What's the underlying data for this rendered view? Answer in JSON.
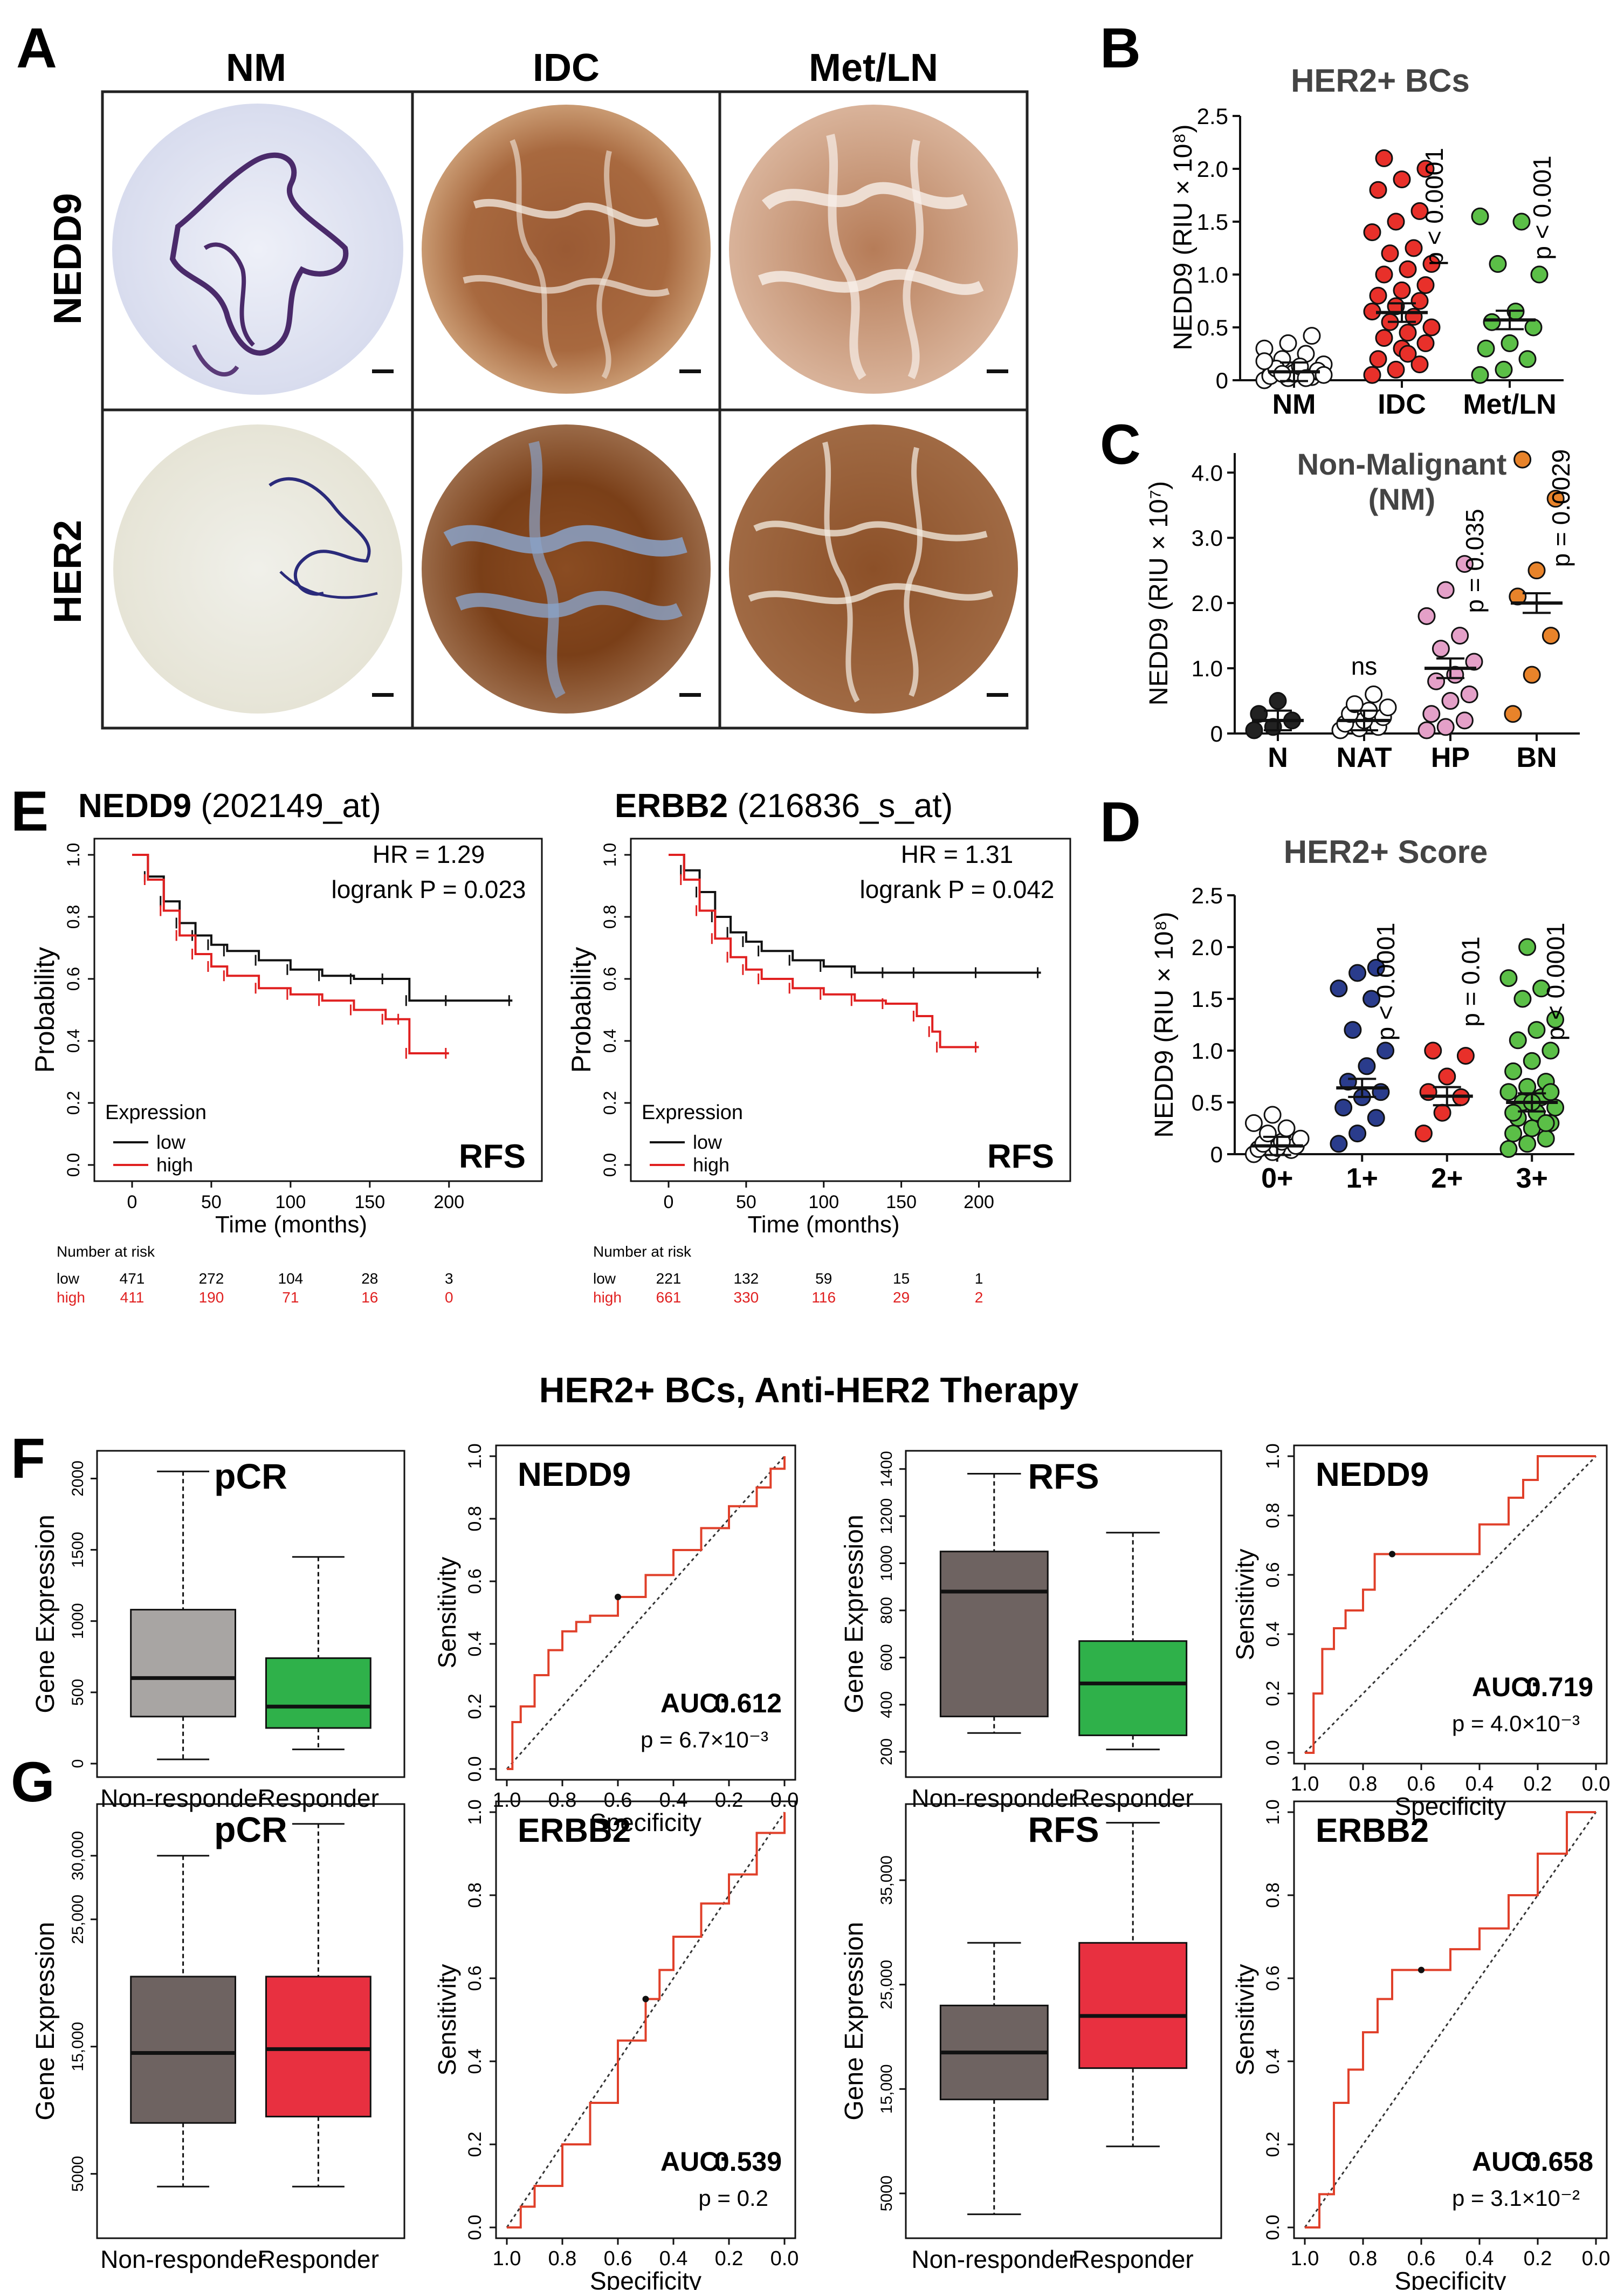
{
  "panelA": {
    "letter": "A",
    "col_labels": [
      "NM",
      "IDC",
      "Met/LN"
    ],
    "row_labels": [
      "NEDD9",
      "HER2"
    ]
  },
  "panelB": {
    "letter": "B",
    "title": "HER2+ BCs",
    "ylabel": "NEDD9 (RIU × 10⁸)",
    "groups": [
      "NM",
      "IDC",
      "Met/LN"
    ],
    "pvalues": [
      "",
      "p < 0.0001",
      "p < 0.001"
    ],
    "colors": [
      "#ffffff",
      "#e8302a",
      "#5bbf47"
    ]
  },
  "panelC": {
    "letter": "C",
    "title_line1": "Non-Malignant",
    "title_line2": "(NM)",
    "ylabel": "NEDD9 (RIU × 10⁷)",
    "groups": [
      "N",
      "NAT",
      "HP",
      "BN"
    ],
    "ns_label": "ns",
    "pvalues": [
      "",
      "",
      "p = 0.035",
      "p = 0.0029"
    ],
    "colors": [
      "#222222",
      "#ffffff",
      "#e4a0c8",
      "#e8832a"
    ]
  },
  "panelD": {
    "letter": "D",
    "title": "HER2+ Score",
    "ylabel": "NEDD9 (RIU × 10⁸)",
    "groups": [
      "0+",
      "1+",
      "2+",
      "3+"
    ],
    "pvalues": [
      "",
      "p < 0.0001",
      "p = 0.01",
      "p < 0.0001"
    ],
    "colors": [
      "#ffffff",
      "#2a3c8c",
      "#e8302a",
      "#5bbf47"
    ]
  },
  "panelE": {
    "letter": "E",
    "plots": [
      {
        "gene": "NEDD9",
        "probe": "(202149_at)",
        "hr": "HR = 1.29",
        "logrank": "logrank P = 0.023",
        "risk_low": [
          "471",
          "272",
          "104",
          "28",
          "3"
        ],
        "risk_high": [
          "411",
          "190",
          "71",
          "16",
          "0"
        ]
      },
      {
        "gene": "ERBB2",
        "probe": "(216836_s_at)",
        "hr": "HR = 1.31",
        "logrank": "logrank P = 0.042",
        "risk_low": [
          "221",
          "132",
          "59",
          "15",
          "1"
        ],
        "risk_high": [
          "661",
          "330",
          "116",
          "29",
          "2"
        ]
      }
    ],
    "ylabel": "Probability",
    "xlabel": "Time (months)",
    "legend_title": "Expression",
    "legend_low": "low",
    "legend_high": "high",
    "tag": "RFS",
    "risk_header": "Number at risk",
    "risk_low_label": "low",
    "risk_high_label": "high",
    "x_ticks": [
      "0",
      "50",
      "100",
      "150",
      "200"
    ],
    "y_ticks": [
      "0.0",
      "0.2",
      "0.4",
      "0.6",
      "0.8",
      "1.0"
    ]
  },
  "section_title": "HER2+ BCs, Anti-HER2 Therapy",
  "panelF": {
    "letter": "F"
  },
  "panelG": {
    "letter": "G"
  },
  "boxplots": {
    "ylabel": "Gene Expression",
    "xcat": [
      "Non-responder",
      "Responder"
    ],
    "F_pcr": {
      "title": "pCR",
      "ticks": [
        "0",
        "500",
        "1000",
        "1500",
        "2000"
      ]
    },
    "F_rfs": {
      "title": "RFS",
      "ticks": [
        "200",
        "400",
        "600",
        "800",
        "1000",
        "1200",
        "1400"
      ]
    },
    "G_pcr": {
      "title": "pCR",
      "ticks": [
        "5000",
        "15,000",
        "25,000",
        "30,000"
      ]
    },
    "G_rfs": {
      "title": "RFS",
      "ticks": [
        "5000",
        "15,000",
        "25,000",
        "35,000"
      ]
    }
  },
  "rocs": {
    "xlabel": "Specificity",
    "ylabel": "Sensitivity",
    "x_ticks": [
      "1.0",
      "0.8",
      "0.6",
      "0.4",
      "0.2",
      "0.0"
    ],
    "y_ticks": [
      "0.0",
      "0.2",
      "0.4",
      "0.6",
      "0.8",
      "1.0"
    ],
    "auc_label": "AUC:",
    "F1": {
      "gene": "NEDD9",
      "auc": "0.612",
      "p": "p = 6.7×10⁻³"
    },
    "F2": {
      "gene": "NEDD9",
      "auc": "0.719",
      "p": "p = 4.0×10⁻³"
    },
    "G1": {
      "gene": "ERBB2",
      "auc": "0.539",
      "p": "p = 0.2"
    },
    "G2": {
      "gene": "ERBB2",
      "auc": "0.658",
      "p": "p = 3.1×10⁻²"
    }
  },
  "chart_data": [
    {
      "type": "scatter",
      "panel": "B",
      "title": "HER2+ BCs",
      "ylabel": "NEDD9 (RIU × 10⁸)",
      "categories": [
        "NM",
        "IDC",
        "Met/LN"
      ],
      "means": [
        0.08,
        0.64,
        0.57
      ],
      "ylim": [
        0,
        2.5
      ],
      "points": [
        [
          0.0,
          0.02,
          0.03,
          0.05,
          0.06,
          0.08,
          0.1,
          0.12,
          0.15,
          0.2,
          0.25,
          0.3,
          0.35,
          0.42,
          0.04,
          0.07,
          0.09,
          0.11,
          0.13,
          0.05,
          0.06,
          0.02,
          0.18
        ],
        [
          0.05,
          0.1,
          0.15,
          0.2,
          0.3,
          0.35,
          0.4,
          0.45,
          0.5,
          0.55,
          0.6,
          0.65,
          0.7,
          0.75,
          0.8,
          0.85,
          0.9,
          1.0,
          1.05,
          1.1,
          1.2,
          1.25,
          1.4,
          1.5,
          1.6,
          1.8,
          1.9,
          2.0,
          2.1,
          0.25
        ],
        [
          0.05,
          0.1,
          0.2,
          0.3,
          0.35,
          0.5,
          0.55,
          0.65,
          1.0,
          1.1,
          1.5,
          1.55
        ]
      ]
    },
    {
      "type": "scatter",
      "panel": "C",
      "title": "Non-Malignant (NM)",
      "ylabel": "NEDD9 (RIU × 10⁷)",
      "categories": [
        "N",
        "NAT",
        "HP",
        "BN"
      ],
      "means": [
        0.2,
        0.2,
        1.0,
        2.0
      ],
      "ylim": [
        0,
        4.3
      ],
      "points": [
        [
          0.05,
          0.1,
          0.2,
          0.3,
          0.5
        ],
        [
          0.05,
          0.08,
          0.1,
          0.15,
          0.2,
          0.25,
          0.3,
          0.35,
          0.4,
          0.45,
          0.6
        ],
        [
          0.05,
          0.1,
          0.2,
          0.3,
          0.5,
          0.6,
          0.8,
          0.9,
          1.1,
          1.3,
          1.5,
          1.8,
          2.2,
          2.6
        ],
        [
          0.3,
          0.9,
          1.5,
          2.1,
          2.5,
          3.6,
          4.2
        ]
      ]
    },
    {
      "type": "scatter",
      "panel": "D",
      "title": "HER2+ Score",
      "ylabel": "NEDD9 (RIU × 10⁸)",
      "categories": [
        "0+",
        "1+",
        "2+",
        "3+"
      ],
      "means": [
        0.08,
        0.64,
        0.56,
        0.5
      ],
      "ylim": [
        0,
        2.5
      ],
      "points": [
        [
          0.0,
          0.02,
          0.04,
          0.05,
          0.06,
          0.08,
          0.1,
          0.12,
          0.15,
          0.2,
          0.25,
          0.3,
          0.38
        ],
        [
          0.1,
          0.2,
          0.35,
          0.45,
          0.55,
          0.6,
          0.7,
          0.85,
          1.0,
          1.2,
          1.5,
          1.6,
          1.75,
          1.8
        ],
        [
          0.2,
          0.4,
          0.55,
          0.6,
          0.75,
          0.95,
          1.0
        ],
        [
          0.05,
          0.1,
          0.15,
          0.2,
          0.25,
          0.3,
          0.35,
          0.4,
          0.45,
          0.5,
          0.55,
          0.6,
          0.65,
          0.7,
          0.8,
          0.9,
          1.0,
          1.1,
          1.2,
          1.3,
          1.5,
          1.6,
          1.7,
          2.0,
          0.3,
          0.4,
          0.5,
          0.6
        ]
      ]
    },
    {
      "type": "line",
      "panel": "E1",
      "title": "NEDD9 (202149_at)",
      "xlabel": "Time (months)",
      "ylabel": "Probability",
      "xlim": [
        0,
        245
      ],
      "ylim": [
        0,
        1.0
      ],
      "series": [
        {
          "name": "low",
          "x": [
            0,
            10,
            20,
            30,
            40,
            50,
            60,
            80,
            100,
            120,
            140,
            160,
            175,
            200,
            240
          ],
          "y": [
            1.0,
            0.93,
            0.85,
            0.78,
            0.74,
            0.71,
            0.69,
            0.66,
            0.63,
            0.61,
            0.6,
            0.6,
            0.53,
            0.53,
            0.53
          ]
        },
        {
          "name": "high",
          "x": [
            0,
            10,
            20,
            30,
            40,
            50,
            60,
            80,
            100,
            120,
            140,
            160,
            170,
            175,
            200
          ],
          "y": [
            1.0,
            0.92,
            0.82,
            0.74,
            0.68,
            0.64,
            0.61,
            0.57,
            0.55,
            0.53,
            0.5,
            0.47,
            0.47,
            0.36,
            0.36
          ]
        }
      ]
    },
    {
      "type": "line",
      "panel": "E2",
      "title": "ERBB2 (216836_s_at)",
      "xlabel": "Time (months)",
      "ylabel": "Probability",
      "xlim": [
        0,
        245
      ],
      "ylim": [
        0,
        1.0
      ],
      "series": [
        {
          "name": "low",
          "x": [
            0,
            10,
            20,
            30,
            40,
            50,
            60,
            80,
            100,
            120,
            140,
            160,
            200,
            240
          ],
          "y": [
            1.0,
            0.95,
            0.88,
            0.8,
            0.75,
            0.72,
            0.69,
            0.66,
            0.64,
            0.62,
            0.62,
            0.62,
            0.62,
            0.62
          ]
        },
        {
          "name": "high",
          "x": [
            0,
            10,
            20,
            30,
            40,
            50,
            60,
            80,
            100,
            120,
            140,
            160,
            170,
            175,
            200
          ],
          "y": [
            1.0,
            0.92,
            0.82,
            0.73,
            0.67,
            0.63,
            0.6,
            0.57,
            0.55,
            0.53,
            0.52,
            0.48,
            0.43,
            0.38,
            0.38
          ]
        }
      ]
    },
    {
      "type": "box",
      "panel": "F-pCR",
      "categories": [
        "Non-responder",
        "Responder"
      ],
      "boxes": [
        {
          "min": 30,
          "q1": 330,
          "median": 600,
          "q3": 1080,
          "max": 2050
        },
        {
          "min": 100,
          "q1": 250,
          "median": 400,
          "q3": 740,
          "max": 1450
        }
      ],
      "ylim": [
        0,
        2100
      ]
    },
    {
      "type": "box",
      "panel": "F-RFS",
      "categories": [
        "Non-responder",
        "Responder"
      ],
      "boxes": [
        {
          "min": 280,
          "q1": 350,
          "median": 880,
          "q3": 1050,
          "max": 1380
        },
        {
          "min": 210,
          "q1": 270,
          "median": 490,
          "q3": 670,
          "max": 1130
        }
      ],
      "ylim": [
        150,
        1420
      ]
    },
    {
      "type": "box",
      "panel": "G-pCR",
      "categories": [
        "Non-responder",
        "Responder"
      ],
      "boxes": [
        {
          "min": 4000,
          "q1": 9000,
          "median": 14500,
          "q3": 20500,
          "max": 30000
        },
        {
          "min": 4000,
          "q1": 9500,
          "median": 14800,
          "q3": 20500,
          "max": 32500
        }
      ],
      "ylim": [
        1000,
        33000
      ]
    },
    {
      "type": "box",
      "panel": "G-RFS",
      "categories": [
        "Non-responder",
        "Responder"
      ],
      "boxes": [
        {
          "min": 3000,
          "q1": 14000,
          "median": 18500,
          "q3": 23000,
          "max": 29000
        },
        {
          "min": 9500,
          "q1": 17000,
          "median": 22000,
          "q3": 29000,
          "max": 40500
        }
      ],
      "ylim": [
        2000,
        41000
      ]
    },
    {
      "type": "line",
      "panel": "F-ROC-NEDD9-pCR",
      "auc": 0.612,
      "xlabel": "Specificity",
      "ylabel": "Sensitivity",
      "series": [
        {
          "name": "ROC",
          "x": [
            1.0,
            0.98,
            0.95,
            0.9,
            0.85,
            0.8,
            0.75,
            0.7,
            0.6,
            0.5,
            0.4,
            0.3,
            0.2,
            0.1,
            0.05,
            0.0
          ],
          "y": [
            0.0,
            0.15,
            0.2,
            0.3,
            0.38,
            0.44,
            0.47,
            0.49,
            0.55,
            0.62,
            0.7,
            0.77,
            0.84,
            0.9,
            0.96,
            1.0
          ]
        }
      ]
    },
    {
      "type": "line",
      "panel": "F-ROC-NEDD9-RFS",
      "auc": 0.719,
      "xlabel": "Specificity",
      "ylabel": "Sensitivity",
      "series": [
        {
          "name": "ROC",
          "x": [
            1.0,
            0.97,
            0.94,
            0.9,
            0.86,
            0.8,
            0.76,
            0.7,
            0.5,
            0.4,
            0.3,
            0.25,
            0.2,
            0.0
          ],
          "y": [
            0.0,
            0.2,
            0.35,
            0.42,
            0.48,
            0.55,
            0.67,
            0.67,
            0.67,
            0.77,
            0.86,
            0.92,
            1.0,
            1.0
          ]
        }
      ]
    },
    {
      "type": "line",
      "panel": "G-ROC-ERBB2-pCR",
      "auc": 0.539,
      "xlabel": "Specificity",
      "ylabel": "Sensitivity",
      "series": [
        {
          "name": "ROC",
          "x": [
            1.0,
            0.95,
            0.9,
            0.8,
            0.7,
            0.6,
            0.5,
            0.45,
            0.4,
            0.3,
            0.2,
            0.1,
            0.0
          ],
          "y": [
            0.0,
            0.05,
            0.1,
            0.2,
            0.3,
            0.45,
            0.55,
            0.62,
            0.7,
            0.78,
            0.85,
            0.95,
            1.0
          ]
        }
      ]
    },
    {
      "type": "line",
      "panel": "G-ROC-ERBB2-RFS",
      "auc": 0.658,
      "xlabel": "Specificity",
      "ylabel": "Sensitivity",
      "series": [
        {
          "name": "ROC",
          "x": [
            1.0,
            0.95,
            0.9,
            0.85,
            0.8,
            0.75,
            0.7,
            0.6,
            0.5,
            0.4,
            0.3,
            0.2,
            0.1,
            0.0
          ],
          "y": [
            0.0,
            0.08,
            0.3,
            0.38,
            0.47,
            0.55,
            0.62,
            0.62,
            0.67,
            0.72,
            0.8,
            0.9,
            1.0,
            1.0
          ]
        }
      ]
    }
  ]
}
